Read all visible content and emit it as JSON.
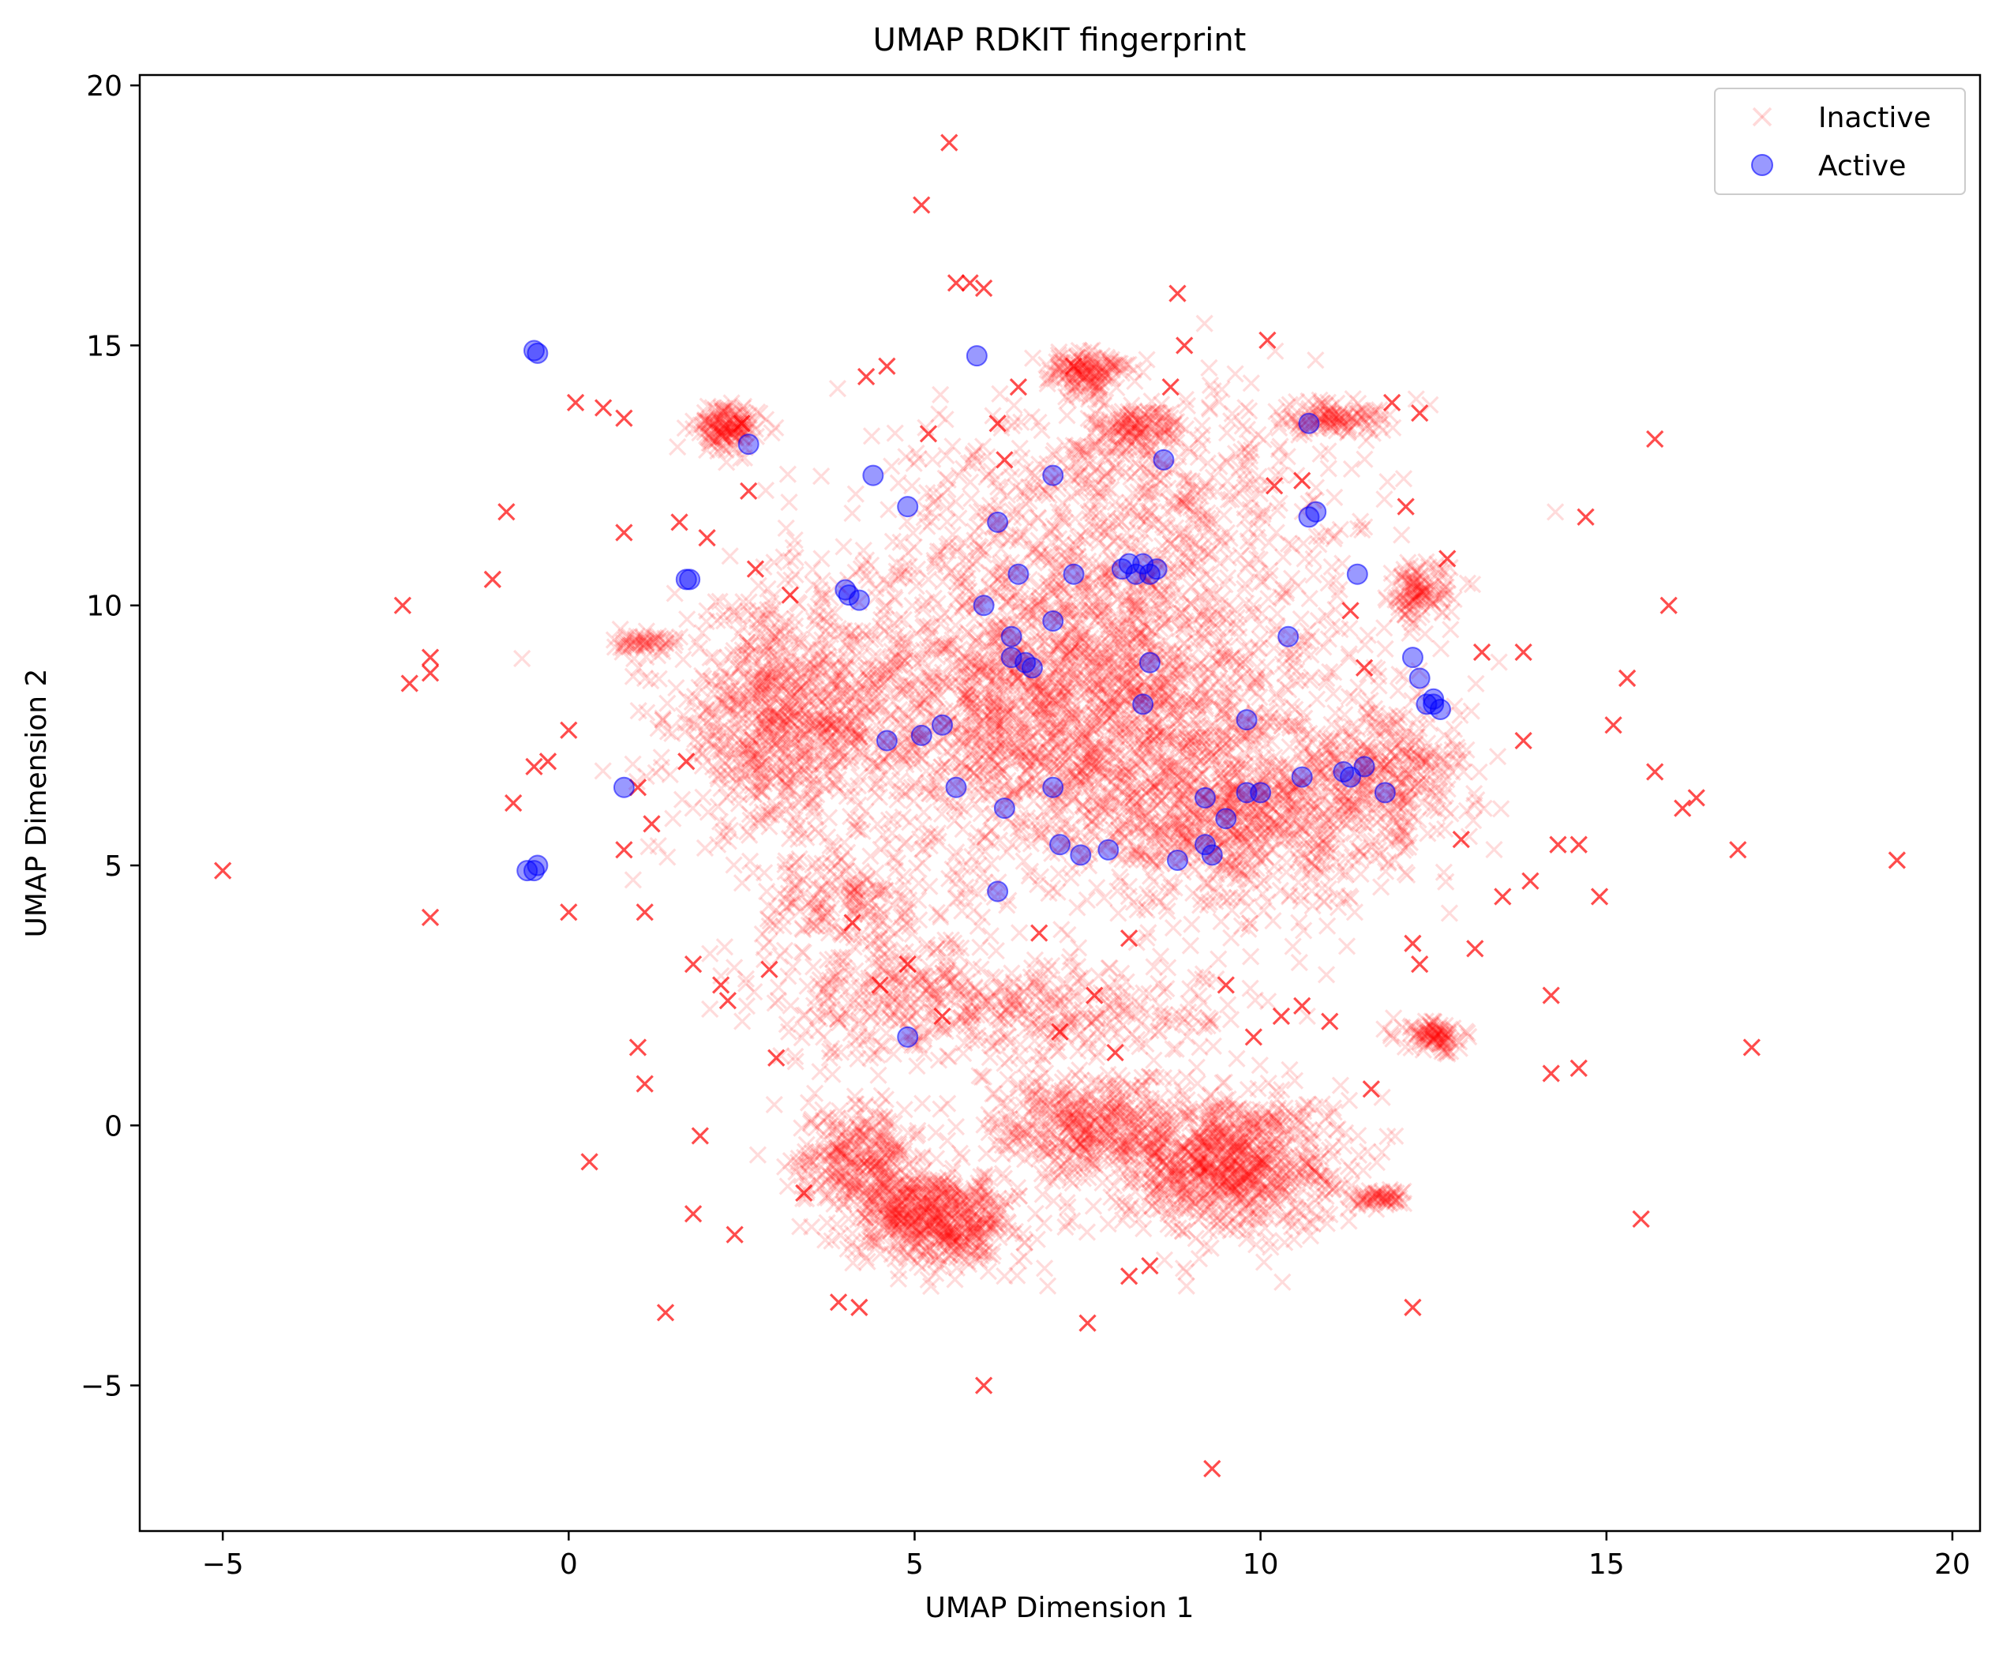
{
  "chart_data": {
    "type": "scatter",
    "title": "UMAP RDKIT fingerprint",
    "xlabel": "UMAP Dimension 1",
    "ylabel": "UMAP Dimension 2",
    "xlim": [
      -6.2,
      20.4
    ],
    "ylim": [
      -7.8,
      20.2
    ],
    "xticks": [
      -5,
      0,
      5,
      10,
      15,
      20
    ],
    "xtick_labels": [
      "−5",
      "0",
      "5",
      "10",
      "15",
      "20"
    ],
    "yticks": [
      -5,
      0,
      5,
      10,
      15,
      20
    ],
    "ytick_labels": [
      "−5",
      "0",
      "5",
      "10",
      "15",
      "20"
    ],
    "grid": false,
    "legend_position": "top-right",
    "series": [
      {
        "name": "Inactive",
        "marker": "x",
        "color": "#ff0000",
        "points": [
          [
            -5.0,
            4.9
          ],
          [
            -2.4,
            10.0
          ],
          [
            -2.3,
            8.5
          ],
          [
            -2.0,
            9.0
          ],
          [
            -2.0,
            8.7
          ],
          [
            -2.0,
            4.0
          ],
          [
            -1.1,
            10.5
          ],
          [
            -0.9,
            11.8
          ],
          [
            -0.8,
            6.2
          ],
          [
            -0.5,
            6.9
          ],
          [
            -0.3,
            7.0
          ],
          [
            0.0,
            7.6
          ],
          [
            0.0,
            4.1
          ],
          [
            0.1,
            13.9
          ],
          [
            0.3,
            -0.7
          ],
          [
            0.5,
            13.8
          ],
          [
            0.8,
            13.6
          ],
          [
            0.8,
            11.4
          ],
          [
            0.8,
            5.3
          ],
          [
            1.0,
            6.5
          ],
          [
            1.0,
            1.5
          ],
          [
            1.1,
            0.8
          ],
          [
            1.1,
            4.1
          ],
          [
            1.2,
            5.8
          ],
          [
            1.4,
            -3.6
          ],
          [
            1.6,
            11.6
          ],
          [
            1.7,
            7.0
          ],
          [
            1.8,
            3.1
          ],
          [
            1.8,
            -1.7
          ],
          [
            1.9,
            -0.2
          ],
          [
            2.0,
            11.3
          ],
          [
            2.2,
            2.7
          ],
          [
            2.3,
            2.4
          ],
          [
            2.4,
            -2.1
          ],
          [
            2.5,
            13.5
          ],
          [
            2.6,
            12.2
          ],
          [
            2.7,
            10.7
          ],
          [
            2.9,
            3.0
          ],
          [
            3.0,
            1.3
          ],
          [
            3.2,
            10.2
          ],
          [
            3.4,
            -1.3
          ],
          [
            3.9,
            -3.4
          ],
          [
            4.1,
            3.9
          ],
          [
            4.2,
            -3.5
          ],
          [
            4.3,
            14.4
          ],
          [
            4.5,
            2.7
          ],
          [
            4.6,
            14.6
          ],
          [
            4.9,
            3.1
          ],
          [
            5.1,
            17.7
          ],
          [
            5.2,
            13.3
          ],
          [
            5.4,
            2.1
          ],
          [
            5.5,
            18.9
          ],
          [
            5.6,
            16.2
          ],
          [
            5.8,
            16.2
          ],
          [
            6.0,
            16.1
          ],
          [
            6.0,
            -5.0
          ],
          [
            6.2,
            13.5
          ],
          [
            6.3,
            12.8
          ],
          [
            6.5,
            14.2
          ],
          [
            6.8,
            3.7
          ],
          [
            7.1,
            1.8
          ],
          [
            7.3,
            14.6
          ],
          [
            7.5,
            -3.8
          ],
          [
            7.6,
            2.5
          ],
          [
            7.9,
            1.4
          ],
          [
            8.1,
            3.6
          ],
          [
            8.1,
            -2.9
          ],
          [
            8.4,
            -2.7
          ],
          [
            8.7,
            14.2
          ],
          [
            8.8,
            16.0
          ],
          [
            8.9,
            15.0
          ],
          [
            9.3,
            -6.6
          ],
          [
            9.5,
            2.7
          ],
          [
            9.9,
            1.7
          ],
          [
            10.1,
            15.1
          ],
          [
            10.2,
            12.3
          ],
          [
            10.3,
            2.1
          ],
          [
            10.6,
            12.4
          ],
          [
            10.6,
            2.3
          ],
          [
            11.0,
            2.0
          ],
          [
            11.3,
            9.9
          ],
          [
            11.5,
            8.8
          ],
          [
            11.6,
            0.7
          ],
          [
            11.9,
            13.9
          ],
          [
            12.1,
            11.9
          ],
          [
            12.2,
            3.5
          ],
          [
            12.3,
            3.1
          ],
          [
            12.2,
            -3.5
          ],
          [
            12.3,
            13.7
          ],
          [
            12.7,
            10.9
          ],
          [
            12.9,
            5.5
          ],
          [
            13.1,
            3.4
          ],
          [
            13.2,
            9.1
          ],
          [
            13.5,
            4.4
          ],
          [
            13.8,
            9.1
          ],
          [
            13.8,
            7.4
          ],
          [
            13.9,
            4.7
          ],
          [
            14.2,
            1.0
          ],
          [
            14.2,
            2.5
          ],
          [
            14.3,
            5.4
          ],
          [
            14.6,
            1.1
          ],
          [
            14.6,
            5.4
          ],
          [
            14.7,
            11.7
          ],
          [
            14.9,
            4.4
          ],
          [
            15.1,
            7.7
          ],
          [
            15.3,
            8.6
          ],
          [
            15.5,
            -1.8
          ],
          [
            15.7,
            13.2
          ],
          [
            15.7,
            6.8
          ],
          [
            15.9,
            10.0
          ],
          [
            16.1,
            6.1
          ],
          [
            16.3,
            6.3
          ],
          [
            16.9,
            5.3
          ],
          [
            17.1,
            1.5
          ],
          [
            19.2,
            5.1
          ]
        ],
        "clusters": [
          {
            "cx": 7.2,
            "cy": 8.2,
            "sx": 2.6,
            "sy": 2.2,
            "n": 2600
          },
          {
            "cx": 3.0,
            "cy": 7.8,
            "sx": 1.0,
            "sy": 1.4,
            "n": 700
          },
          {
            "cx": 9.8,
            "cy": 5.8,
            "sx": 1.5,
            "sy": 1.1,
            "n": 700
          },
          {
            "cx": 11.8,
            "cy": 6.8,
            "sx": 0.9,
            "sy": 0.8,
            "n": 300
          },
          {
            "cx": 8.0,
            "cy": 12.2,
            "sx": 2.2,
            "sy": 1.3,
            "n": 500
          },
          {
            "cx": 9.5,
            "cy": -0.7,
            "sx": 1.1,
            "sy": 0.9,
            "n": 900
          },
          {
            "cx": 7.5,
            "cy": 0.0,
            "sx": 0.9,
            "sy": 0.7,
            "n": 400
          },
          {
            "cx": 5.3,
            "cy": -1.8,
            "sx": 0.8,
            "sy": 0.6,
            "n": 600
          },
          {
            "cx": 4.2,
            "cy": -0.6,
            "sx": 0.6,
            "sy": 0.7,
            "n": 300
          },
          {
            "cx": 4.8,
            "cy": 2.6,
            "sx": 1.3,
            "sy": 1.0,
            "n": 350
          },
          {
            "cx": 7.5,
            "cy": 2.2,
            "sx": 1.6,
            "sy": 0.6,
            "n": 250
          },
          {
            "cx": 2.3,
            "cy": 13.4,
            "sx": 0.3,
            "sy": 0.3,
            "n": 150
          },
          {
            "cx": 7.5,
            "cy": 14.5,
            "sx": 0.4,
            "sy": 0.3,
            "n": 150
          },
          {
            "cx": 8.2,
            "cy": 13.4,
            "sx": 0.4,
            "sy": 0.3,
            "n": 120
          },
          {
            "cx": 11.0,
            "cy": 13.6,
            "sx": 0.6,
            "sy": 0.2,
            "n": 120
          },
          {
            "cx": 12.3,
            "cy": 10.2,
            "sx": 0.3,
            "sy": 0.4,
            "n": 120
          },
          {
            "cx": 12.5,
            "cy": 1.7,
            "sx": 0.3,
            "sy": 0.2,
            "n": 100
          },
          {
            "cx": 11.8,
            "cy": -1.4,
            "sx": 0.3,
            "sy": 0.1,
            "n": 60
          },
          {
            "cx": 4.0,
            "cy": 4.3,
            "sx": 0.8,
            "sy": 0.6,
            "n": 150
          },
          {
            "cx": 1.1,
            "cy": 9.3,
            "sx": 0.3,
            "sy": 0.1,
            "n": 50
          }
        ]
      },
      {
        "name": "Active",
        "marker": "o",
        "color": "#0000ff",
        "points": [
          [
            -0.5,
            14.9
          ],
          [
            -0.45,
            14.85
          ],
          [
            -0.5,
            4.9
          ],
          [
            -0.45,
            5.0
          ],
          [
            -0.6,
            4.9
          ],
          [
            0.8,
            6.5
          ],
          [
            1.7,
            10.5
          ],
          [
            1.75,
            10.5
          ],
          [
            2.6,
            13.1
          ],
          [
            4.0,
            10.3
          ],
          [
            4.05,
            10.2
          ],
          [
            4.2,
            10.1
          ],
          [
            4.4,
            12.5
          ],
          [
            4.6,
            7.4
          ],
          [
            4.9,
            11.9
          ],
          [
            4.9,
            1.7
          ],
          [
            5.1,
            7.5
          ],
          [
            5.4,
            7.7
          ],
          [
            5.6,
            6.5
          ],
          [
            5.9,
            14.8
          ],
          [
            6.0,
            10.0
          ],
          [
            6.2,
            11.6
          ],
          [
            6.2,
            4.5
          ],
          [
            6.3,
            6.1
          ],
          [
            6.4,
            9.0
          ],
          [
            6.4,
            9.4
          ],
          [
            6.5,
            10.6
          ],
          [
            6.6,
            8.9
          ],
          [
            6.7,
            8.8
          ],
          [
            7.0,
            12.5
          ],
          [
            7.0,
            9.7
          ],
          [
            7.0,
            6.5
          ],
          [
            7.1,
            5.4
          ],
          [
            7.3,
            10.6
          ],
          [
            7.4,
            5.2
          ],
          [
            7.8,
            5.3
          ],
          [
            8.0,
            10.7
          ],
          [
            8.1,
            10.8
          ],
          [
            8.2,
            10.6
          ],
          [
            8.3,
            10.8
          ],
          [
            8.4,
            10.6
          ],
          [
            8.5,
            10.7
          ],
          [
            8.3,
            8.1
          ],
          [
            8.4,
            8.9
          ],
          [
            8.6,
            12.8
          ],
          [
            8.8,
            5.1
          ],
          [
            9.2,
            6.3
          ],
          [
            9.2,
            5.4
          ],
          [
            9.3,
            5.2
          ],
          [
            9.5,
            5.9
          ],
          [
            9.8,
            7.8
          ],
          [
            9.8,
            6.4
          ],
          [
            10.0,
            6.4
          ],
          [
            10.4,
            9.4
          ],
          [
            10.6,
            6.7
          ],
          [
            10.7,
            13.5
          ],
          [
            10.7,
            11.7
          ],
          [
            10.8,
            11.8
          ],
          [
            11.2,
            6.8
          ],
          [
            11.3,
            6.7
          ],
          [
            11.4,
            10.6
          ],
          [
            11.5,
            6.9
          ],
          [
            11.8,
            6.4
          ],
          [
            12.2,
            9.0
          ],
          [
            12.3,
            8.6
          ],
          [
            12.4,
            8.1
          ],
          [
            12.5,
            8.2
          ],
          [
            12.6,
            8.0
          ],
          [
            12.5,
            8.1
          ]
        ]
      }
    ]
  }
}
